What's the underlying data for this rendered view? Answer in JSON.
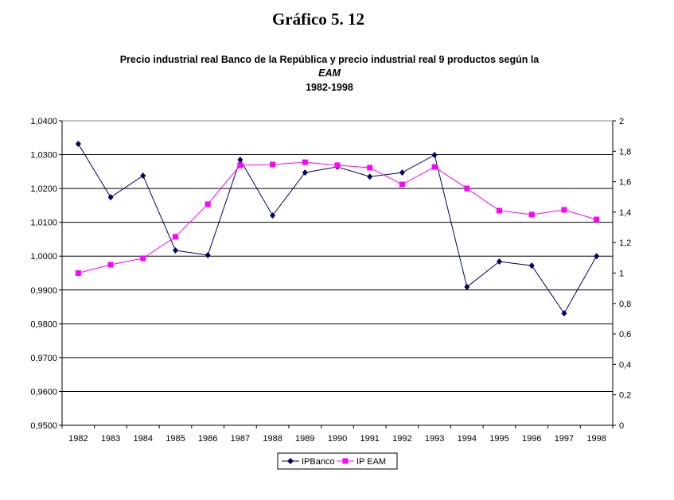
{
  "chart_data": {
    "type": "line",
    "title": "Gráfico 5. 12",
    "subtitle_lines": [
      "Precio industrial real Banco de la República y precio industrial real 9 productos según la",
      "EAM",
      "1982-1998"
    ],
    "categories": [
      "1982",
      "1983",
      "1984",
      "1985",
      "1986",
      "1987",
      "1988",
      "1989",
      "1990",
      "1991",
      "1992",
      "1993",
      "1994",
      "1995",
      "1996",
      "1997",
      "1998"
    ],
    "y_left": {
      "range": [
        0.95,
        1.04
      ],
      "ticks": [
        "0,9500",
        "0,9600",
        "0,9700",
        "0,9800",
        "0,9900",
        "1,0000",
        "1,0100",
        "1,0200",
        "1,0300",
        "1,0400"
      ]
    },
    "y_right": {
      "range": [
        0,
        2
      ],
      "ticks": [
        "0",
        "0,2",
        "0,4",
        "0,6",
        "0,8",
        "1",
        "1,2",
        "1,4",
        "1,6",
        "1,8",
        "2"
      ]
    },
    "grid": true,
    "legend": "bottom",
    "series": [
      {
        "name": "IPBanco",
        "axis": "left",
        "color": "#000066",
        "marker": "diamond",
        "values": [
          1.0332,
          1.0174,
          1.0238,
          1.0017,
          1.0003,
          1.0285,
          1.012,
          1.0247,
          1.0264,
          1.0235,
          1.0247,
          1.0299,
          0.9909,
          0.9984,
          0.9972,
          0.9831,
          1.0
        ]
      },
      {
        "name": "IP EAM",
        "axis": "right",
        "color": "#ff00ff",
        "marker": "square",
        "values": [
          1.0,
          1.055,
          1.097,
          1.238,
          1.452,
          1.708,
          1.713,
          1.728,
          1.708,
          1.692,
          1.582,
          1.697,
          1.556,
          1.41,
          1.384,
          1.415,
          1.352
        ]
      }
    ]
  }
}
